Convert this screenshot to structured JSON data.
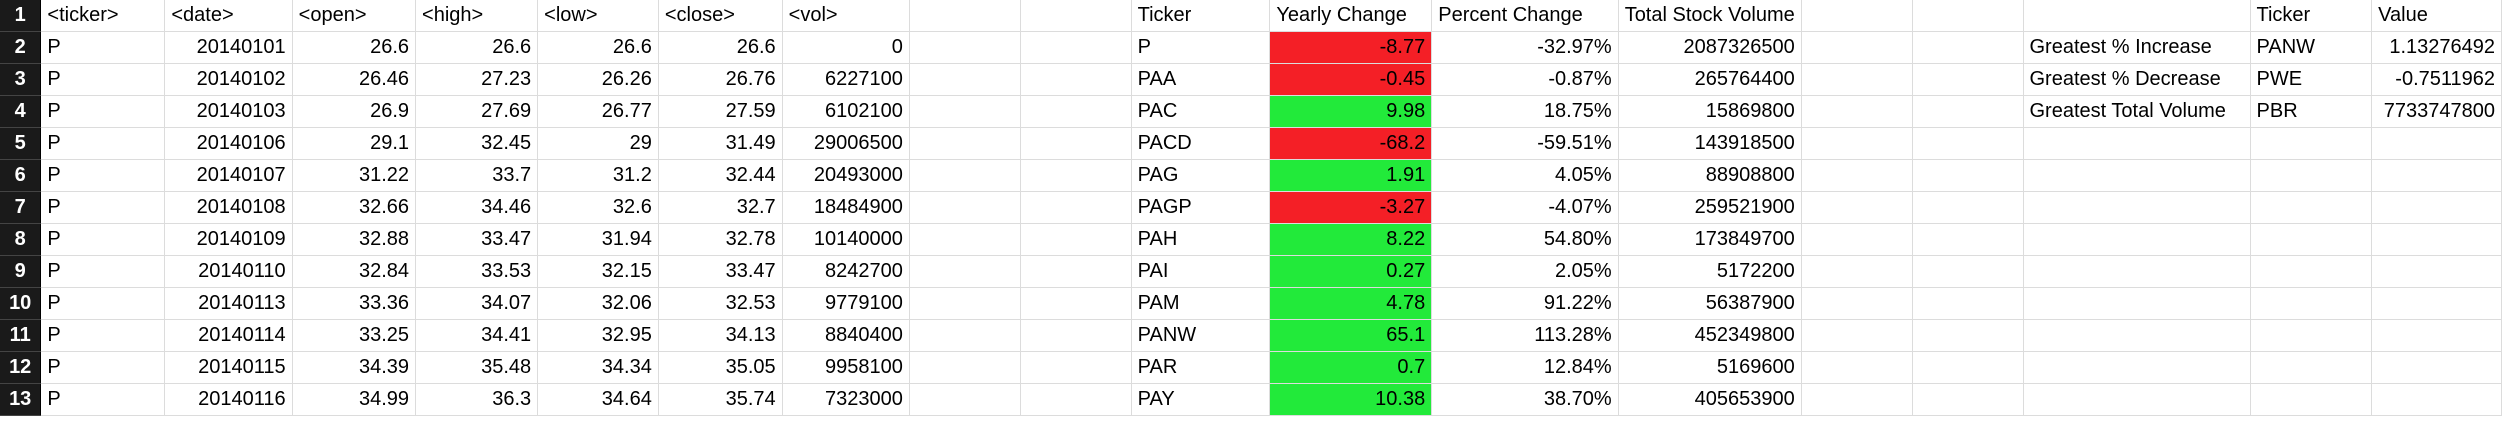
{
  "colors": {
    "positive": "#22ea3a",
    "negative": "#f41f26",
    "row_header_bg": "#1a1a1a",
    "gridline": "#dcdcdc"
  },
  "headers": {
    "stock": [
      "<ticker>",
      "<date>",
      "<open>",
      "<high>",
      "<low>",
      "<close>",
      "<vol>"
    ],
    "summary": [
      "Ticker",
      "Yearly Change",
      "Percent Change",
      "Total Stock Volume"
    ],
    "greatest": [
      "Ticker",
      "Value"
    ]
  },
  "rows": [
    {
      "num": "1"
    },
    {
      "num": "2",
      "stock": [
        "P",
        "20140101",
        "26.6",
        "26.6",
        "26.6",
        "26.6",
        "0"
      ],
      "summary": [
        "P",
        "-8.77",
        "-32.97%",
        "2087326500"
      ],
      "sign": "neg",
      "greatest": [
        "Greatest % Increase",
        "PANW",
        "1.13276492"
      ]
    },
    {
      "num": "3",
      "stock": [
        "P",
        "20140102",
        "26.46",
        "27.23",
        "26.26",
        "26.76",
        "6227100"
      ],
      "summary": [
        "PAA",
        "-0.45",
        "-0.87%",
        "265764400"
      ],
      "sign": "neg",
      "greatest": [
        "Greatest % Decrease",
        "PWE",
        "-0.7511962"
      ]
    },
    {
      "num": "4",
      "stock": [
        "P",
        "20140103",
        "26.9",
        "27.69",
        "26.77",
        "27.59",
        "6102100"
      ],
      "summary": [
        "PAC",
        "9.98",
        "18.75%",
        "15869800"
      ],
      "sign": "pos",
      "greatest": [
        "Greatest Total Volume",
        "PBR",
        "7733747800"
      ]
    },
    {
      "num": "5",
      "stock": [
        "P",
        "20140106",
        "29.1",
        "32.45",
        "29",
        "31.49",
        "29006500"
      ],
      "summary": [
        "PACD",
        "-68.2",
        "-59.51%",
        "143918500"
      ],
      "sign": "neg"
    },
    {
      "num": "6",
      "stock": [
        "P",
        "20140107",
        "31.22",
        "33.7",
        "31.2",
        "32.44",
        "20493000"
      ],
      "summary": [
        "PAG",
        "1.91",
        "4.05%",
        "88908800"
      ],
      "sign": "pos"
    },
    {
      "num": "7",
      "stock": [
        "P",
        "20140108",
        "32.66",
        "34.46",
        "32.6",
        "32.7",
        "18484900"
      ],
      "summary": [
        "PAGP",
        "-3.27",
        "-4.07%",
        "259521900"
      ],
      "sign": "neg"
    },
    {
      "num": "8",
      "stock": [
        "P",
        "20140109",
        "32.88",
        "33.47",
        "31.94",
        "32.78",
        "10140000"
      ],
      "summary": [
        "PAH",
        "8.22",
        "54.80%",
        "173849700"
      ],
      "sign": "pos"
    },
    {
      "num": "9",
      "stock": [
        "P",
        "20140110",
        "32.84",
        "33.53",
        "32.15",
        "33.47",
        "8242700"
      ],
      "summary": [
        "PAI",
        "0.27",
        "2.05%",
        "5172200"
      ],
      "sign": "pos"
    },
    {
      "num": "10",
      "stock": [
        "P",
        "20140113",
        "33.36",
        "34.07",
        "32.06",
        "32.53",
        "9779100"
      ],
      "summary": [
        "PAM",
        "4.78",
        "91.22%",
        "56387900"
      ],
      "sign": "pos"
    },
    {
      "num": "11",
      "stock": [
        "P",
        "20140114",
        "33.25",
        "34.41",
        "32.95",
        "34.13",
        "8840400"
      ],
      "summary": [
        "PANW",
        "65.1",
        "113.28%",
        "452349800"
      ],
      "sign": "pos"
    },
    {
      "num": "12",
      "stock": [
        "P",
        "20140115",
        "34.39",
        "35.48",
        "34.34",
        "35.05",
        "9958100"
      ],
      "summary": [
        "PAR",
        "0.7",
        "12.84%",
        "5169600"
      ],
      "sign": "pos"
    },
    {
      "num": "13",
      "stock": [
        "P",
        "20140116",
        "34.99",
        "36.3",
        "34.64",
        "35.74",
        "7323000"
      ],
      "summary": [
        "PAY",
        "10.38",
        "38.70%",
        "405653900"
      ],
      "sign": "pos"
    }
  ]
}
